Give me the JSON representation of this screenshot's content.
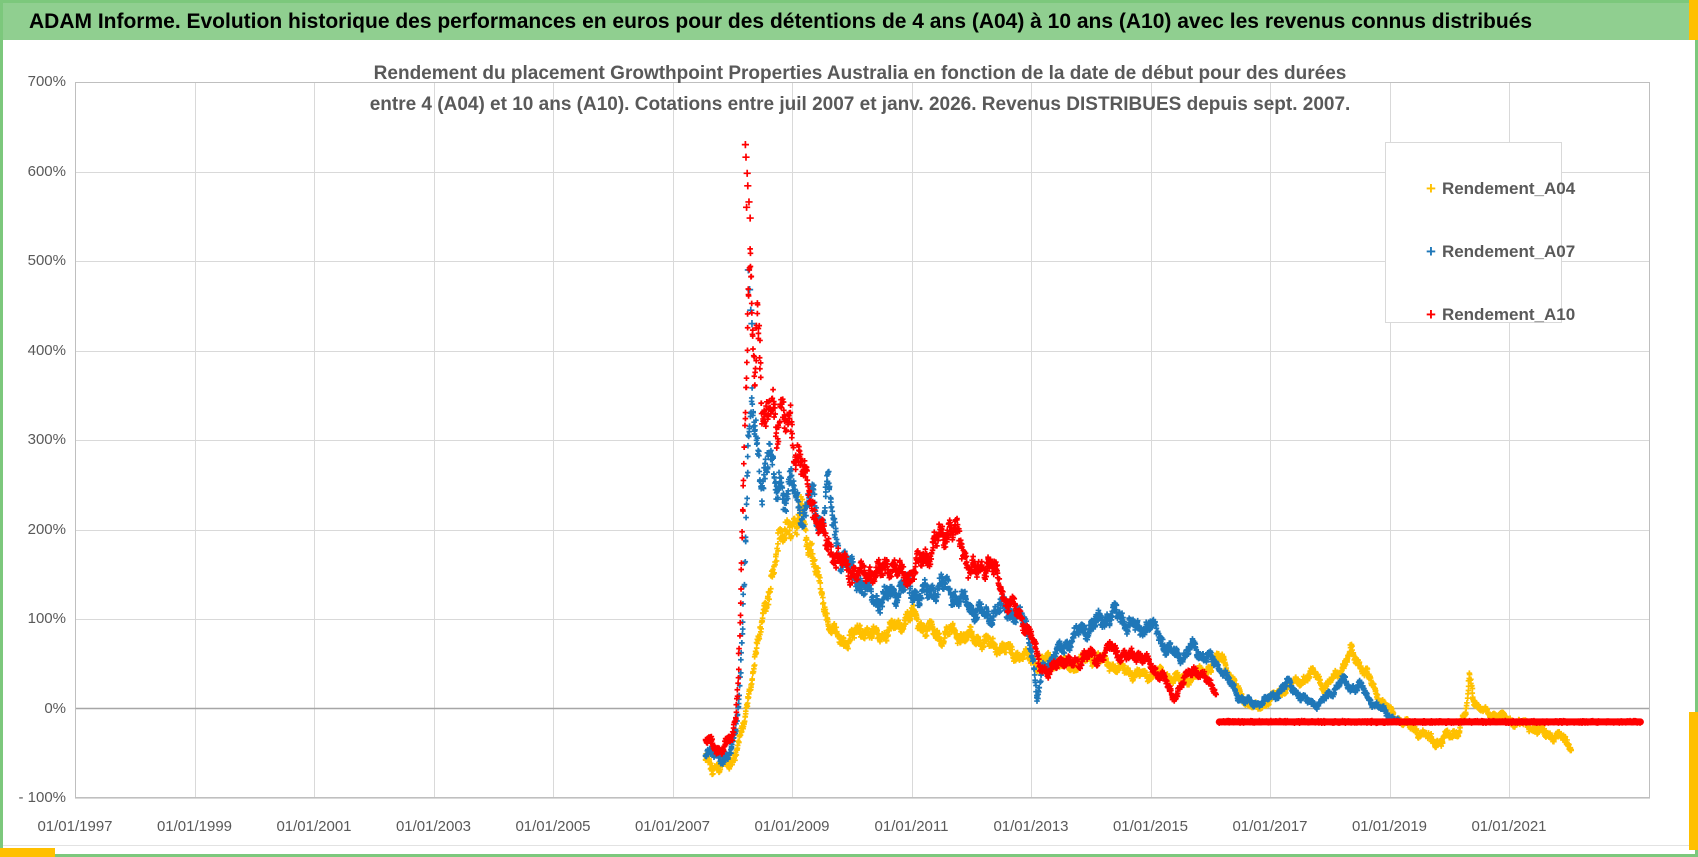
{
  "window": {
    "header_title": "ADAM Informe. Evolution historique des performances en euros pour des détentions de 4 ans (A04) à 10 ans (A10) avec les revenus connus distribués"
  },
  "chart": {
    "title_line1": "Rendement du placement Growthpoint Properties Australia en fonction de la date de début pour des durées",
    "title_line2": "entre 4 (A04) et 10 ans (A10). Cotations entre juil 2007 et janv. 2026. Revenus DISTRIBUES depuis sept. 2007.",
    "marker_glyph": "+"
  },
  "colors": {
    "header_bg": "#90cf90",
    "frame_green": "#7cc87c",
    "accent_yellow": "#ffc000",
    "series_a04": "#ffc000",
    "series_a07": "#1f77b8",
    "series_a10": "#ff0000",
    "grid": "#d9d9d9",
    "plot_border": "#bfbfbf",
    "zero_line": "#a6a6a6",
    "text_gray": "#595959"
  },
  "chart_data": {
    "type": "scatter",
    "title": "Rendement du placement Growthpoint Properties Australia en fonction de la date de début pour des durées entre 4 (A04) et 10 ans (A10). Cotations entre juil 2007 et janv. 2026. Revenus DISTRIBUES depuis sept. 2007.",
    "legend_position": "right-top",
    "grid": true,
    "x_axis": {
      "min_year": 1997,
      "max_year": 2023.36,
      "tick_years": [
        1997,
        1999,
        2001,
        2003,
        2005,
        2007,
        2009,
        2011,
        2013,
        2015,
        2017,
        2019,
        2021
      ],
      "tick_labels": [
        "01/01/1997",
        "01/01/1999",
        "01/01/2001",
        "01/01/2003",
        "01/01/2005",
        "01/01/2007",
        "01/01/2009",
        "01/01/2011",
        "01/01/2013",
        "01/01/2015",
        "01/01/2017",
        "01/01/2019",
        "01/01/2021"
      ]
    },
    "y_axis": {
      "min": -100,
      "max": 700,
      "step": 100,
      "unit": "%",
      "tick_labels": [
        "700%",
        "600%",
        "500%",
        "400%",
        "300%",
        "200%",
        "100%",
        "0%",
        "- 100%"
      ]
    },
    "style": {
      "grid": "#d9d9d9",
      "border": "#bfbfbf",
      "zero": "#a6a6a6"
    },
    "series": [
      {
        "name": "Rendement_A04",
        "color": "#ffc000",
        "marker": "plus",
        "keypoints": [
          [
            2007.55,
            -55
          ],
          [
            2007.65,
            -62
          ],
          [
            2007.78,
            -68
          ],
          [
            2007.9,
            -62
          ],
          [
            2008.0,
            -57
          ],
          [
            2008.1,
            -42
          ],
          [
            2008.2,
            -15
          ],
          [
            2008.3,
            25
          ],
          [
            2008.4,
            62
          ],
          [
            2008.5,
            95
          ],
          [
            2008.6,
            130
          ],
          [
            2008.7,
            160
          ],
          [
            2008.8,
            185
          ],
          [
            2008.9,
            205
          ],
          [
            2009.0,
            212
          ],
          [
            2009.08,
            188
          ],
          [
            2009.15,
            228
          ],
          [
            2009.25,
            198
          ],
          [
            2009.35,
            168
          ],
          [
            2009.5,
            128
          ],
          [
            2009.6,
            100
          ],
          [
            2009.72,
            82
          ],
          [
            2009.85,
            75
          ],
          [
            2010.0,
            80
          ],
          [
            2010.2,
            88
          ],
          [
            2010.4,
            80
          ],
          [
            2010.6,
            86
          ],
          [
            2010.8,
            95
          ],
          [
            2011.0,
            104
          ],
          [
            2011.15,
            95
          ],
          [
            2011.3,
            86
          ],
          [
            2011.5,
            80
          ],
          [
            2011.7,
            86
          ],
          [
            2011.9,
            80
          ],
          [
            2012.1,
            78
          ],
          [
            2012.3,
            72
          ],
          [
            2012.5,
            68
          ],
          [
            2012.7,
            62
          ],
          [
            2012.9,
            58
          ],
          [
            2013.1,
            50
          ],
          [
            2013.3,
            56
          ],
          [
            2013.5,
            50
          ],
          [
            2013.7,
            46
          ],
          [
            2013.9,
            55
          ],
          [
            2014.1,
            58
          ],
          [
            2014.3,
            50
          ],
          [
            2014.5,
            44
          ],
          [
            2014.7,
            40
          ],
          [
            2014.9,
            36
          ],
          [
            2015.1,
            40
          ],
          [
            2015.3,
            36
          ],
          [
            2015.5,
            32
          ],
          [
            2015.7,
            35
          ],
          [
            2015.9,
            42
          ],
          [
            2016.1,
            52
          ],
          [
            2016.2,
            58
          ],
          [
            2016.35,
            35
          ],
          [
            2016.5,
            15
          ],
          [
            2016.65,
            5
          ],
          [
            2016.8,
            0
          ],
          [
            2017.0,
            10
          ],
          [
            2017.2,
            20
          ],
          [
            2017.4,
            28
          ],
          [
            2017.6,
            35
          ],
          [
            2017.75,
            40
          ],
          [
            2017.9,
            24
          ],
          [
            2018.05,
            32
          ],
          [
            2018.2,
            45
          ],
          [
            2018.35,
            62
          ],
          [
            2018.5,
            50
          ],
          [
            2018.65,
            35
          ],
          [
            2018.8,
            15
          ],
          [
            2018.95,
            2
          ],
          [
            2019.1,
            -10
          ],
          [
            2019.3,
            -18
          ],
          [
            2019.5,
            -26
          ],
          [
            2019.7,
            -35
          ],
          [
            2019.85,
            -38
          ],
          [
            2020.0,
            -30
          ],
          [
            2020.15,
            -25
          ],
          [
            2020.28,
            -5
          ],
          [
            2020.34,
            35
          ],
          [
            2020.42,
            10
          ],
          [
            2020.52,
            -2
          ],
          [
            2020.7,
            -6
          ],
          [
            2020.9,
            -10
          ],
          [
            2021.1,
            -15
          ],
          [
            2021.3,
            -19
          ],
          [
            2021.5,
            -25
          ],
          [
            2021.7,
            -30
          ],
          [
            2021.9,
            -34
          ],
          [
            2022.05,
            -40
          ]
        ],
        "outliers": []
      },
      {
        "name": "Rendement_A07",
        "color": "#1f77b8",
        "marker": "plus",
        "keypoints": [
          [
            2007.55,
            -44
          ],
          [
            2007.65,
            -50
          ],
          [
            2007.78,
            -57
          ],
          [
            2007.9,
            -52
          ],
          [
            2008.0,
            -44
          ],
          [
            2008.06,
            -25
          ],
          [
            2008.12,
            15
          ],
          [
            2008.17,
            90
          ],
          [
            2008.22,
            200
          ],
          [
            2008.27,
            300
          ],
          [
            2008.33,
            340
          ],
          [
            2008.38,
            305
          ],
          [
            2008.44,
            280
          ],
          [
            2008.5,
            252
          ],
          [
            2008.56,
            272
          ],
          [
            2008.62,
            290
          ],
          [
            2008.68,
            258
          ],
          [
            2008.74,
            240
          ],
          [
            2008.8,
            262
          ],
          [
            2008.9,
            232
          ],
          [
            2009.0,
            252
          ],
          [
            2009.1,
            230
          ],
          [
            2009.2,
            212
          ],
          [
            2009.3,
            240
          ],
          [
            2009.4,
            222
          ],
          [
            2009.5,
            202
          ],
          [
            2009.58,
            252
          ],
          [
            2009.68,
            212
          ],
          [
            2009.78,
            178
          ],
          [
            2009.9,
            160
          ],
          [
            2010.0,
            155
          ],
          [
            2010.15,
            140
          ],
          [
            2010.3,
            126
          ],
          [
            2010.5,
            120
          ],
          [
            2010.7,
            130
          ],
          [
            2010.9,
            136
          ],
          [
            2011.1,
            126
          ],
          [
            2011.3,
            130
          ],
          [
            2011.5,
            138
          ],
          [
            2011.7,
            128
          ],
          [
            2011.9,
            118
          ],
          [
            2012.1,
            108
          ],
          [
            2012.3,
            103
          ],
          [
            2012.5,
            113
          ],
          [
            2012.7,
            108
          ],
          [
            2012.9,
            96
          ],
          [
            2013.02,
            65
          ],
          [
            2013.1,
            8
          ],
          [
            2013.2,
            46
          ],
          [
            2013.4,
            60
          ],
          [
            2013.6,
            72
          ],
          [
            2013.8,
            85
          ],
          [
            2014.0,
            92
          ],
          [
            2014.2,
            100
          ],
          [
            2014.4,
            106
          ],
          [
            2014.6,
            96
          ],
          [
            2014.8,
            88
          ],
          [
            2015.0,
            95
          ],
          [
            2015.15,
            80
          ],
          [
            2015.3,
            66
          ],
          [
            2015.5,
            58
          ],
          [
            2015.7,
            68
          ],
          [
            2015.9,
            60
          ],
          [
            2016.05,
            52
          ],
          [
            2016.2,
            45
          ],
          [
            2016.35,
            25
          ],
          [
            2016.5,
            12
          ],
          [
            2016.7,
            5
          ],
          [
            2016.9,
            8
          ],
          [
            2017.1,
            16
          ],
          [
            2017.3,
            28
          ],
          [
            2017.45,
            18
          ],
          [
            2017.6,
            8
          ],
          [
            2017.8,
            5
          ],
          [
            2018.0,
            15
          ],
          [
            2018.2,
            32
          ],
          [
            2018.35,
            22
          ],
          [
            2018.5,
            28
          ],
          [
            2018.65,
            10
          ],
          [
            2018.8,
            4
          ],
          [
            2018.95,
            -6
          ],
          [
            2019.15,
            -14
          ]
        ],
        "outliers": [
          [
            2008.27,
            490
          ],
          [
            2008.29,
            468
          ],
          [
            2008.31,
            445
          ],
          [
            2008.33,
            430
          ]
        ]
      },
      {
        "name": "Rendement_A10",
        "color": "#ff0000",
        "marker": "plus",
        "keypoints": [
          [
            2007.55,
            -34
          ],
          [
            2007.65,
            -40
          ],
          [
            2007.78,
            -46
          ],
          [
            2007.9,
            -40
          ],
          [
            2008.0,
            -32
          ],
          [
            2008.06,
            -10
          ],
          [
            2008.1,
            40
          ],
          [
            2008.14,
            120
          ],
          [
            2008.18,
            220
          ],
          [
            2008.22,
            330
          ],
          [
            2008.26,
            430
          ],
          [
            2008.3,
            490
          ],
          [
            2008.34,
            420
          ],
          [
            2008.38,
            380
          ],
          [
            2008.42,
            460
          ],
          [
            2008.46,
            400
          ],
          [
            2008.5,
            330
          ],
          [
            2008.56,
            305
          ],
          [
            2008.62,
            330
          ],
          [
            2008.68,
            350
          ],
          [
            2008.74,
            315
          ],
          [
            2008.8,
            335
          ],
          [
            2008.88,
            310
          ],
          [
            2008.96,
            325
          ],
          [
            2009.05,
            295
          ],
          [
            2009.15,
            272
          ],
          [
            2009.25,
            245
          ],
          [
            2009.35,
            228
          ],
          [
            2009.45,
            202
          ],
          [
            2009.6,
            182
          ],
          [
            2009.75,
            168
          ],
          [
            2009.9,
            158
          ],
          [
            2010.05,
            152
          ],
          [
            2010.2,
            148
          ],
          [
            2010.35,
            155
          ],
          [
            2010.5,
            150
          ],
          [
            2010.65,
            164
          ],
          [
            2010.8,
            152
          ],
          [
            2010.95,
            148
          ],
          [
            2011.1,
            158
          ],
          [
            2011.25,
            172
          ],
          [
            2011.4,
            185
          ],
          [
            2011.55,
            196
          ],
          [
            2011.65,
            205
          ],
          [
            2011.8,
            186
          ],
          [
            2011.95,
            162
          ],
          [
            2012.1,
            150
          ],
          [
            2012.25,
            166
          ],
          [
            2012.4,
            150
          ],
          [
            2012.55,
            125
          ],
          [
            2012.7,
            112
          ],
          [
            2012.85,
            100
          ],
          [
            2013.0,
            80
          ],
          [
            2013.15,
            50
          ],
          [
            2013.3,
            38
          ],
          [
            2013.5,
            56
          ],
          [
            2013.7,
            48
          ],
          [
            2013.9,
            60
          ],
          [
            2014.1,
            55
          ],
          [
            2014.35,
            68
          ],
          [
            2014.6,
            56
          ],
          [
            2014.8,
            62
          ],
          [
            2015.0,
            48
          ],
          [
            2015.2,
            36
          ],
          [
            2015.38,
            12
          ],
          [
            2015.55,
            30
          ],
          [
            2015.72,
            46
          ],
          [
            2015.85,
            36
          ],
          [
            2016.0,
            28
          ],
          [
            2016.1,
            22
          ]
        ],
        "outliers": [
          [
            2008.22,
            630
          ],
          [
            2008.23,
            616
          ],
          [
            2008.24,
            560
          ],
          [
            2008.25,
            598
          ],
          [
            2008.26,
            584
          ],
          [
            2008.28,
            566
          ],
          [
            2008.3,
            548
          ]
        ],
        "flat_segment": {
          "from": 2016.15,
          "to": 2023.2,
          "value": -15
        }
      }
    ]
  }
}
